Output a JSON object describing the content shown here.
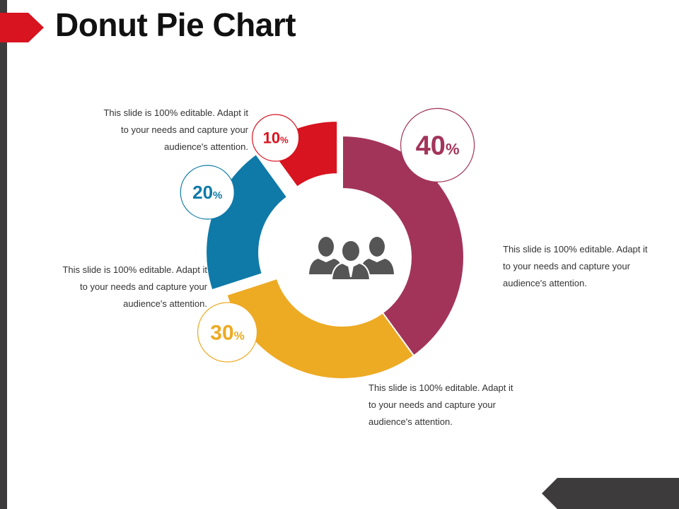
{
  "slide": {
    "title": "Donut Pie Chart"
  },
  "colors": {
    "red": "#d7141f",
    "blue": "#0f7aa8",
    "yellow": "#edaa23",
    "plum": "#a2345a",
    "dark": "#3d3b3c",
    "icon": "#555555"
  },
  "center_icon": "group-of-people-icon",
  "chart_data": {
    "type": "pie",
    "style": "donut",
    "unit": "%",
    "slices": [
      {
        "value": 40,
        "value_label": "40",
        "color": "#a2345a",
        "description": "This slide is 100% editable. Adapt it to your needs and capture your audience's attention."
      },
      {
        "value": 30,
        "value_label": "30",
        "color": "#edaa23",
        "description": "This slide is 100% editable. Adapt it to your needs and capture your audience's attention."
      },
      {
        "value": 20,
        "value_label": "20",
        "color": "#0f7aa8",
        "description": "This slide is 100% editable. Adapt it to your needs and capture your audience's attention."
      },
      {
        "value": 10,
        "value_label": "10",
        "color": "#d7141f",
        "description": "This slide is 100% editable. Adapt it to your needs and capture your audience's attention."
      }
    ]
  },
  "descriptions": {
    "d40": [
      "This slide is 100% editable. Adapt it",
      "to your needs and capture your",
      "audience's attention."
    ],
    "d30": [
      "This slide is 100% editable. Adapt it",
      "to your needs and capture your",
      "audience's attention."
    ],
    "d20": [
      "This slide is 100% editable. Adapt it",
      "to your needs and capture your",
      "audience's attention."
    ],
    "d10": [
      "This slide is 100% editable. Adapt it",
      "to your needs and capture your",
      "audience's attention."
    ]
  }
}
